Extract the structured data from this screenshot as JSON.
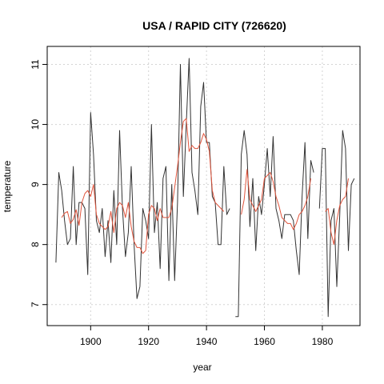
{
  "chart_data": {
    "type": "line",
    "title": "USA / RAPID CITY (726620)",
    "xlabel": "year",
    "ylabel": "temperature",
    "xlim": [
      1885,
      1993
    ],
    "ylim": [
      6.65,
      11.3
    ],
    "xticks": [
      1900,
      1920,
      1940,
      1960,
      1980
    ],
    "yticks": [
      7,
      8,
      9,
      10,
      11
    ],
    "grid": true,
    "series": [
      {
        "color": "#333333",
        "segments": [
          [
            [
              1888,
              7.7
            ],
            [
              1889,
              9.2
            ],
            [
              1890,
              8.9
            ],
            [
              1891,
              8.4
            ],
            [
              1892,
              8.0
            ],
            [
              1893,
              8.1
            ],
            [
              1894,
              9.3
            ],
            [
              1895,
              8.0
            ],
            [
              1896,
              8.7
            ],
            [
              1897,
              8.7
            ],
            [
              1898,
              8.6
            ],
            [
              1899,
              7.5
            ],
            [
              1900,
              10.2
            ],
            [
              1901,
              9.5
            ],
            [
              1902,
              8.4
            ],
            [
              1903,
              8.2
            ],
            [
              1904,
              8.6
            ],
            [
              1905,
              7.8
            ],
            [
              1906,
              8.4
            ],
            [
              1907,
              7.7
            ],
            [
              1908,
              8.9
            ],
            [
              1909,
              8.0
            ],
            [
              1910,
              9.9
            ],
            [
              1911,
              8.6
            ],
            [
              1912,
              7.8
            ],
            [
              1913,
              8.2
            ],
            [
              1914,
              9.3
            ],
            [
              1915,
              8.0
            ],
            [
              1916,
              7.1
            ],
            [
              1917,
              7.3
            ],
            [
              1918,
              8.6
            ],
            [
              1919,
              8.4
            ],
            [
              1920,
              8.1
            ],
            [
              1921,
              10.0
            ],
            [
              1922,
              8.2
            ],
            [
              1923,
              8.7
            ],
            [
              1924,
              7.6
            ],
            [
              1925,
              9.1
            ],
            [
              1926,
              9.3
            ],
            [
              1927,
              7.4
            ],
            [
              1928,
              9.0
            ],
            [
              1929,
              7.4
            ],
            [
              1930,
              8.7
            ],
            [
              1931,
              11.0
            ],
            [
              1932,
              8.8
            ],
            [
              1933,
              10.0
            ],
            [
              1934,
              11.1
            ],
            [
              1935,
              9.2
            ],
            [
              1936,
              8.9
            ],
            [
              1937,
              8.5
            ],
            [
              1938,
              10.3
            ],
            [
              1939,
              10.7
            ],
            [
              1940,
              9.7
            ],
            [
              1941,
              9.7
            ],
            [
              1942,
              8.8
            ],
            [
              1943,
              8.7
            ],
            [
              1944,
              8.0
            ],
            [
              1945,
              8.0
            ],
            [
              1946,
              9.3
            ],
            [
              1947,
              8.5
            ],
            [
              1948,
              8.6
            ]
          ],
          [
            [
              1950,
              6.8
            ],
            [
              1951,
              6.8
            ],
            [
              1952,
              9.5
            ],
            [
              1953,
              9.9
            ],
            [
              1954,
              9.5
            ],
            [
              1955,
              8.3
            ],
            [
              1956,
              9.1
            ],
            [
              1957,
              7.9
            ],
            [
              1958,
              8.8
            ],
            [
              1959,
              8.5
            ],
            [
              1960,
              9.0
            ],
            [
              1961,
              9.6
            ],
            [
              1962,
              8.8
            ],
            [
              1963,
              9.8
            ],
            [
              1964,
              8.6
            ],
            [
              1965,
              8.4
            ],
            [
              1966,
              8.1
            ],
            [
              1967,
              8.5
            ],
            [
              1968,
              8.5
            ],
            [
              1969,
              8.5
            ],
            [
              1970,
              8.4
            ],
            [
              1971,
              7.9
            ],
            [
              1972,
              7.5
            ],
            [
              1973,
              8.8
            ],
            [
              1974,
              9.7
            ],
            [
              1975,
              8.1
            ],
            [
              1976,
              9.4
            ],
            [
              1977,
              9.2
            ]
          ],
          [
            [
              1979,
              8.6
            ],
            [
              1980,
              9.6
            ],
            [
              1981,
              9.6
            ],
            [
              1982,
              6.8
            ],
            [
              1983,
              8.4
            ],
            [
              1984,
              8.6
            ],
            [
              1985,
              7.3
            ],
            [
              1986,
              8.5
            ],
            [
              1987,
              9.9
            ],
            [
              1988,
              9.6
            ],
            [
              1989,
              7.9
            ],
            [
              1990,
              9.0
            ],
            [
              1991,
              9.1
            ]
          ]
        ]
      },
      {
        "color": "#e0543c",
        "segments": [
          [
            [
              1890,
              8.45
            ],
            [
              1891,
              8.52
            ],
            [
              1892,
              8.55
            ],
            [
              1893,
              8.35
            ],
            [
              1894,
              8.42
            ],
            [
              1895,
              8.58
            ],
            [
              1896,
              8.32
            ],
            [
              1897,
              8.7
            ],
            [
              1898,
              8.85
            ],
            [
              1899,
              8.9
            ],
            [
              1900,
              8.8
            ],
            [
              1901,
              9.0
            ],
            [
              1902,
              8.5
            ],
            [
              1903,
              8.35
            ],
            [
              1904,
              8.3
            ],
            [
              1905,
              8.25
            ],
            [
              1906,
              8.3
            ],
            [
              1907,
              8.55
            ],
            [
              1908,
              8.2
            ],
            [
              1909,
              8.6
            ],
            [
              1910,
              8.7
            ],
            [
              1911,
              8.65
            ],
            [
              1912,
              8.45
            ],
            [
              1913,
              8.7
            ],
            [
              1914,
              8.3
            ],
            [
              1915,
              8.05
            ],
            [
              1916,
              7.95
            ],
            [
              1917,
              7.95
            ],
            [
              1918,
              7.85
            ],
            [
              1919,
              7.9
            ],
            [
              1920,
              8.5
            ],
            [
              1921,
              8.65
            ],
            [
              1922,
              8.6
            ],
            [
              1923,
              8.4
            ],
            [
              1924,
              8.6
            ],
            [
              1925,
              8.45
            ],
            [
              1926,
              8.45
            ],
            [
              1927,
              8.45
            ],
            [
              1928,
              8.6
            ],
            [
              1929,
              8.95
            ],
            [
              1930,
              9.3
            ],
            [
              1931,
              9.7
            ],
            [
              1932,
              10.05
            ],
            [
              1933,
              10.1
            ],
            [
              1934,
              9.55
            ],
            [
              1935,
              9.65
            ],
            [
              1936,
              9.6
            ],
            [
              1937,
              9.6
            ],
            [
              1938,
              9.7
            ],
            [
              1939,
              9.85
            ],
            [
              1940,
              9.75
            ],
            [
              1941,
              9.55
            ],
            [
              1942,
              8.9
            ],
            [
              1943,
              8.7
            ],
            [
              1944,
              8.65
            ],
            [
              1945,
              8.6
            ],
            [
              1946,
              8.55
            ]
          ],
          [
            [
              1952,
              8.5
            ],
            [
              1953,
              8.75
            ],
            [
              1954,
              9.25
            ],
            [
              1955,
              8.75
            ],
            [
              1956,
              8.65
            ],
            [
              1957,
              8.55
            ],
            [
              1958,
              8.65
            ],
            [
              1959,
              8.75
            ],
            [
              1960,
              9.1
            ],
            [
              1961,
              9.15
            ],
            [
              1962,
              9.2
            ],
            [
              1963,
              9.05
            ],
            [
              1964,
              8.8
            ],
            [
              1965,
              8.65
            ],
            [
              1966,
              8.45
            ],
            [
              1967,
              8.4
            ],
            [
              1968,
              8.35
            ],
            [
              1969,
              8.35
            ],
            [
              1970,
              8.25
            ],
            [
              1971,
              8.35
            ],
            [
              1972,
              8.5
            ],
            [
              1973,
              8.55
            ],
            [
              1974,
              8.65
            ],
            [
              1975,
              8.8
            ],
            [
              1976,
              9.1
            ]
          ],
          [
            [
              1981,
              8.55
            ],
            [
              1982,
              8.6
            ],
            [
              1983,
              8.2
            ],
            [
              1984,
              8.0
            ],
            [
              1985,
              8.4
            ],
            [
              1986,
              8.65
            ],
            [
              1987,
              8.75
            ],
            [
              1988,
              8.8
            ],
            [
              1989,
              9.1
            ]
          ]
        ]
      }
    ]
  }
}
